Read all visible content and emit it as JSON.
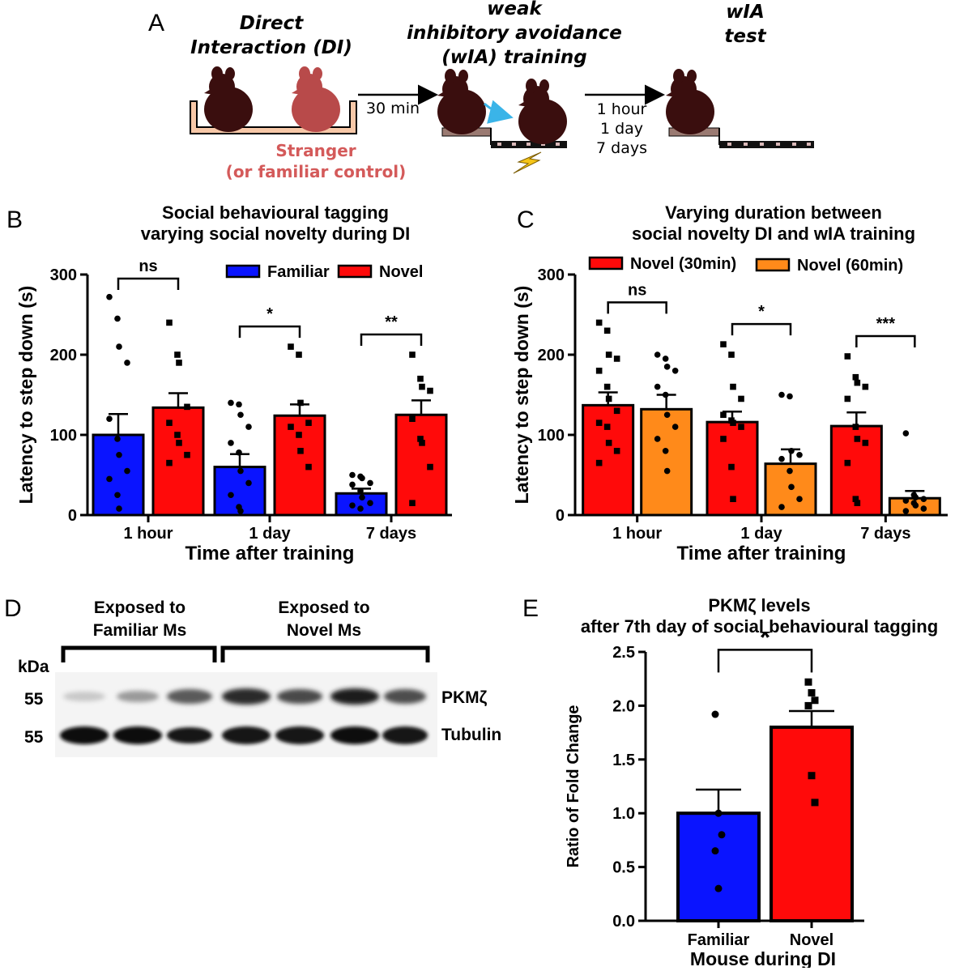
{
  "panel_a": {
    "letter": "A",
    "step1_title_line1": "Direct",
    "step1_title_line2": "Interaction (DI)",
    "step2_title_line1": "weak",
    "step2_title_line2": "inhibitory avoidance",
    "step2_title_line3": "(wIA) training",
    "step3_title_line1": "wIA",
    "step3_title_line2": "test",
    "interval1": "30 min",
    "interval2_line1": "1 hour",
    "interval2_line2": "1 day",
    "interval2_line3": "7 days",
    "stranger_line1": "Stranger",
    "stranger_line2": "(or familiar control)"
  },
  "panel_d": {
    "letter": "D",
    "group1_line1": "Exposed to",
    "group1_line2": "Familiar Ms",
    "group2_line1": "Exposed to",
    "group2_line2": "Novel Ms",
    "kda": "kDa",
    "mw1": "55",
    "mw2": "55",
    "band1": "PKMζ",
    "band2": "Tubulin"
  },
  "colors": {
    "blue": "#0a14ff",
    "red": "#ff0a0a",
    "orange": "#ff8a1a",
    "stranger": "#d45a5a",
    "mouse_dark": "#3a0e0e",
    "mouse_red": "#b84a4a",
    "arena": "#f7c8a8",
    "arrow_cyan": "#3ab4e8",
    "shock": "#f5c518"
  },
  "chart_data": [
    {
      "panel": "B",
      "type": "bar",
      "title_line1": "Social behavioural tagging",
      "title_line2": "varying social novelty during DI",
      "xlabel": "Time after training",
      "ylabel": "Latency to step down (s)",
      "ylim": [
        0,
        300
      ],
      "yticks": [
        "0",
        "100",
        "200",
        "300"
      ],
      "categories": [
        "1 hour",
        "1 day",
        "7 days"
      ],
      "series": [
        {
          "name": "Familiar",
          "color": "blue",
          "values": [
            100,
            60,
            27
          ],
          "sem": [
            26,
            16,
            6
          ],
          "marker": "circle",
          "points": [
            [
              272,
              245,
              210,
              190,
              120,
              95,
              75,
              55,
              45,
              25,
              8
            ],
            [
              140,
              138,
              125,
              110,
              90,
              78,
              55,
              40,
              25,
              10,
              5
            ],
            [
              50,
              48,
              46,
              40,
              38,
              30,
              22,
              15,
              12,
              8
            ]
          ]
        },
        {
          "name": "Novel",
          "color": "red",
          "values": [
            134,
            124,
            125
          ],
          "sem": [
            18,
            14,
            18
          ],
          "marker": "square",
          "points": [
            [
              240,
              200,
              190,
              135,
              115,
              100,
              90,
              75,
              65
            ],
            [
              210,
              200,
              140,
              115,
              110,
              100,
              80,
              60
            ],
            [
              200,
              170,
              160,
              155,
              120,
              95,
              90,
              60,
              15
            ]
          ]
        }
      ],
      "significance": [
        "ns",
        "*",
        "**"
      ],
      "legend_position": "top-right"
    },
    {
      "panel": "C",
      "type": "bar",
      "title_line1": "Varying duration between",
      "title_line2": "social novelty DI and wIA training",
      "xlabel": "Time after training",
      "ylabel": "Latency to step down (s)",
      "ylim": [
        0,
        300
      ],
      "yticks": [
        "0",
        "100",
        "200",
        "300"
      ],
      "categories": [
        "1 hour",
        "1 day",
        "7 days"
      ],
      "series": [
        {
          "name": "Novel (30min)",
          "color": "red",
          "values": [
            137,
            116,
            111
          ],
          "sem": [
            16,
            13,
            17
          ],
          "marker": "square",
          "points": [
            [
              240,
              230,
              200,
              195,
              180,
              160,
              145,
              130,
              115,
              110,
              90,
              80,
              65
            ],
            [
              213,
              200,
              160,
              145,
              125,
              118,
              115,
              110,
              95,
              60,
              20
            ],
            [
              198,
              172,
              165,
              160,
              145,
              110,
              95,
              90,
              65,
              20,
              15
            ]
          ]
        },
        {
          "name": "Novel (60min)",
          "color": "orange",
          "values": [
            132,
            64,
            21
          ],
          "sem": [
            18,
            18,
            9
          ],
          "marker": "circle",
          "points": [
            [
              200,
              195,
              185,
              180,
              160,
              150,
              125,
              110,
              95,
              80,
              55
            ],
            [
              150,
              148,
              80,
              75,
              70,
              55,
              35,
              20,
              10
            ],
            [
              102,
              25,
              22,
              20,
              18,
              15,
              12,
              8,
              5
            ]
          ]
        }
      ],
      "significance": [
        "ns",
        "*",
        "***"
      ],
      "legend_position": "top"
    },
    {
      "panel": "E",
      "type": "bar",
      "title_line1": "PKMζ levels",
      "title_line2": "after 7th day of social behavioural tagging",
      "xlabel": "Mouse during DI",
      "ylabel": "Ratio of Fold Change",
      "ylim": [
        0,
        2.5
      ],
      "yticks": [
        "0.0",
        "0.5",
        "1.0",
        "1.5",
        "2.0",
        "2.5"
      ],
      "categories": [
        "Familiar",
        "Novel"
      ],
      "values": [
        1.0,
        1.8
      ],
      "sem": [
        0.22,
        0.15
      ],
      "colors": [
        "blue",
        "red"
      ],
      "markers": [
        "circle",
        "square"
      ],
      "points": [
        [
          1.92,
          1.0,
          0.8,
          0.65,
          0.3
        ],
        [
          2.22,
          2.12,
          2.05,
          2.0,
          1.35,
          1.1
        ]
      ],
      "significance": "*"
    }
  ]
}
